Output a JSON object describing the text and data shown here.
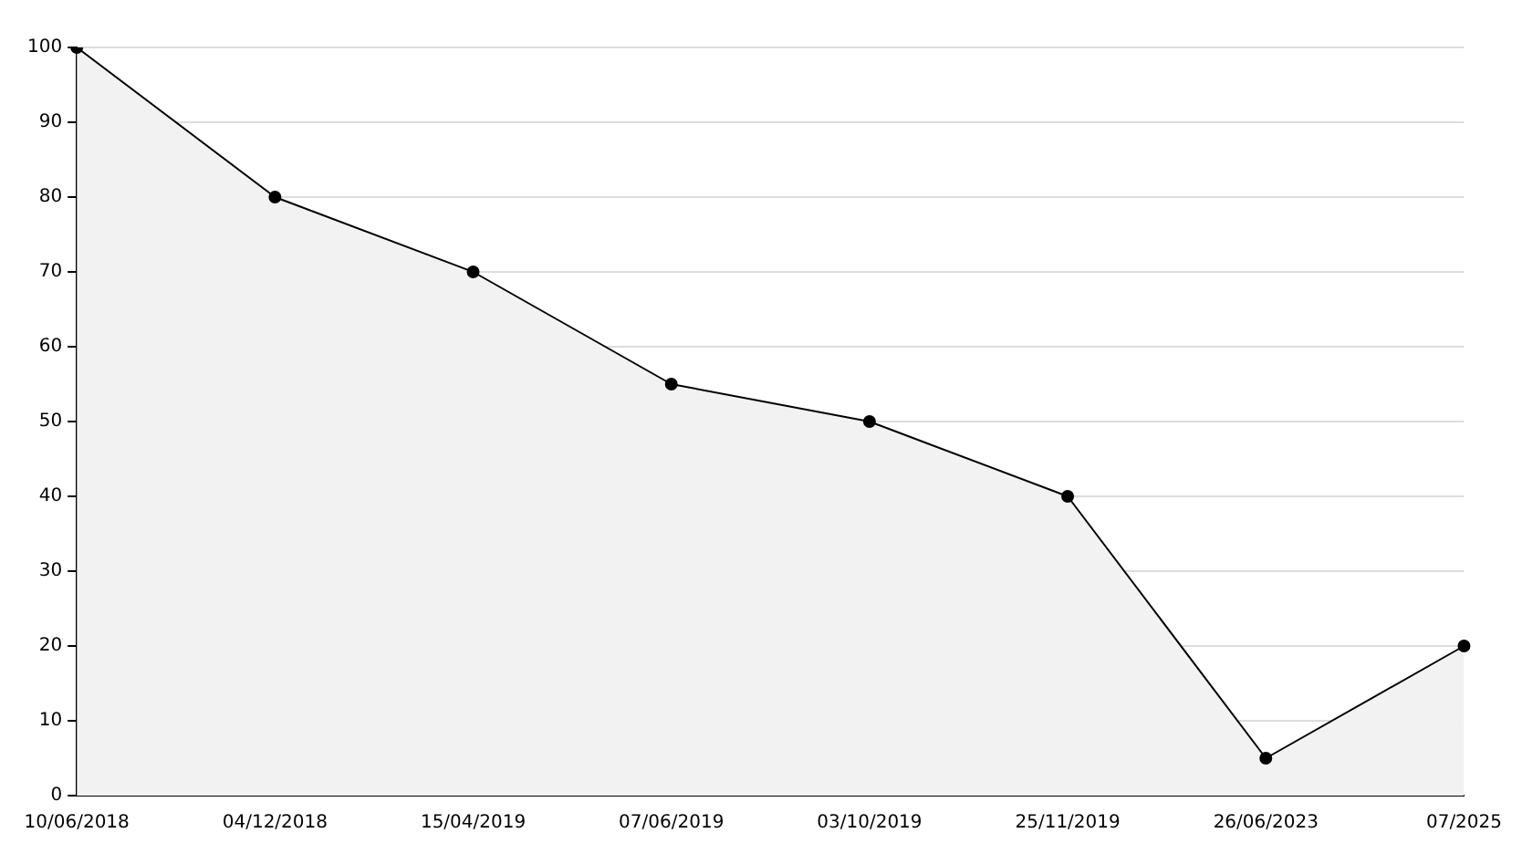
{
  "chart_data": {
    "type": "area",
    "categories": [
      "10/06/2018",
      "04/12/2018",
      "15/04/2019",
      "07/06/2019",
      "03/10/2019",
      "25/11/2019",
      "26/06/2023",
      "07/2025"
    ],
    "series": [
      {
        "color": "#000000",
        "values": [
          100,
          80,
          70,
          55,
          50,
          40,
          5,
          20
        ]
      }
    ],
    "ylim": [
      0,
      100
    ],
    "yticks": [
      0,
      10,
      20,
      30,
      40,
      50,
      60,
      70,
      80,
      90,
      100
    ],
    "grid": "y",
    "legend": false,
    "marker": "circle",
    "line_style": "solid"
  }
}
